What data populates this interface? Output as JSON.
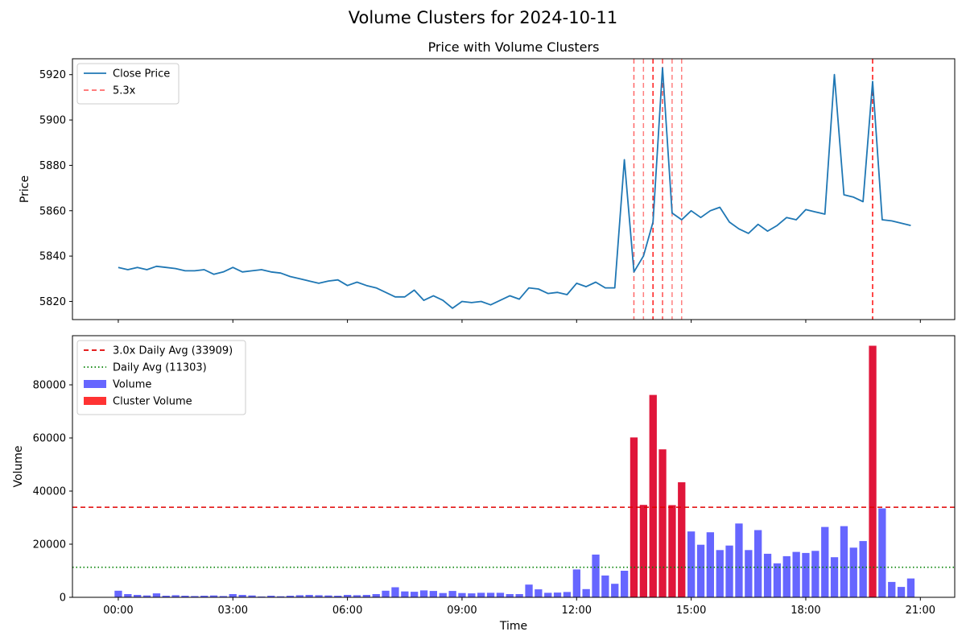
{
  "figure": {
    "title": "Volume Clusters for 2024-10-11"
  },
  "chart_data": [
    {
      "type": "line",
      "title": "Price with Volume Clusters",
      "xlabel": "",
      "ylabel": "Price",
      "x_hours": [
        0.0,
        0.25,
        0.5,
        0.75,
        1.0,
        1.25,
        1.5,
        1.75,
        2.0,
        2.25,
        2.5,
        2.75,
        3.0,
        3.25,
        3.5,
        3.75,
        4.0,
        4.25,
        4.5,
        4.75,
        5.0,
        5.25,
        5.5,
        5.75,
        6.0,
        6.25,
        6.5,
        6.75,
        7.0,
        7.25,
        7.5,
        7.75,
        8.0,
        8.25,
        8.5,
        8.75,
        9.0,
        9.25,
        9.5,
        9.75,
        10.0,
        10.25,
        10.5,
        10.75,
        11.0,
        11.25,
        11.5,
        11.75,
        12.0,
        12.25,
        12.5,
        12.75,
        13.0,
        13.25,
        13.5,
        13.75,
        14.0,
        14.25,
        14.5,
        14.75,
        15.0,
        15.25,
        15.5,
        15.75,
        16.0,
        16.25,
        16.5,
        16.75,
        17.0,
        17.25,
        17.5,
        17.75,
        18.0,
        18.25,
        18.5,
        18.75,
        19.0,
        19.25,
        19.5,
        19.75,
        20.0,
        20.25,
        20.5,
        20.75
      ],
      "series": [
        {
          "name": "Close Price",
          "color": "#1f77b4",
          "values": [
            5835,
            5834,
            5835,
            5834,
            5835.5,
            5835,
            5834.5,
            5833.5,
            5833.5,
            5834,
            5832,
            5833,
            5835,
            5833,
            5833.5,
            5834,
            5833,
            5832.5,
            5831,
            5830,
            5829,
            5828,
            5829,
            5829.5,
            5827,
            5828.5,
            5827,
            5826,
            5824,
            5822,
            5822,
            5825,
            5820.5,
            5822.5,
            5820.5,
            5817,
            5820,
            5819.5,
            5820,
            5818.5,
            5820.5,
            5822.5,
            5821,
            5826,
            5825.5,
            5823.5,
            5824,
            5823,
            5828,
            5826.5,
            5828.5,
            5826,
            5826,
            5882.5,
            5833,
            5840,
            5855,
            5923,
            5859,
            5856,
            5860,
            5857,
            5860,
            5861.5,
            5855,
            5852,
            5850,
            5854,
            5851,
            5853.5,
            5857,
            5856,
            5860.5,
            5859.5,
            5858.5,
            5920,
            5867,
            5866,
            5864,
            5917,
            5856,
            5855.5,
            5854.5,
            5853.5
          ]
        }
      ],
      "ylim": [
        5812,
        5927
      ],
      "xlim": [
        -1.2,
        21.9
      ],
      "yticks": [
        5820,
        5840,
        5860,
        5880,
        5900,
        5920
      ],
      "xticks": [
        {
          "value": 0,
          "label": "00:00"
        },
        {
          "value": 3,
          "label": "03:00"
        },
        {
          "value": 6,
          "label": "06:00"
        },
        {
          "value": 9,
          "label": "09:00"
        },
        {
          "value": 12,
          "label": "12:00"
        },
        {
          "value": 15,
          "label": "15:00"
        },
        {
          "value": 18,
          "label": "18:00"
        },
        {
          "value": 21,
          "label": "21:00"
        }
      ],
      "cluster_lines": [
        {
          "x": 13.5,
          "opacity": 0.6
        },
        {
          "x": 13.75,
          "opacity": 0.5
        },
        {
          "x": 14.0,
          "opacity": 0.9
        },
        {
          "x": 14.25,
          "opacity": 0.7
        },
        {
          "x": 14.5,
          "opacity": 0.5
        },
        {
          "x": 14.75,
          "opacity": 0.5
        },
        {
          "x": 19.75,
          "opacity": 0.95
        }
      ],
      "legend": {
        "placement": "top-left",
        "entries": [
          {
            "label": "Close Price",
            "color": "#1f77b4",
            "style": "solid"
          },
          {
            "label": "5.3x",
            "color": "#ff6b6b",
            "style": "dashed"
          }
        ]
      }
    },
    {
      "type": "bar",
      "title": "",
      "xlabel": "Time",
      "ylabel": "Volume",
      "x_hours": [
        0.0,
        0.25,
        0.5,
        0.75,
        1.0,
        1.25,
        1.5,
        1.75,
        2.0,
        2.25,
        2.5,
        2.75,
        3.0,
        3.25,
        3.5,
        3.75,
        4.0,
        4.25,
        4.5,
        4.75,
        5.0,
        5.25,
        5.5,
        5.75,
        6.0,
        6.25,
        6.5,
        6.75,
        7.0,
        7.25,
        7.5,
        7.75,
        8.0,
        8.25,
        8.5,
        8.75,
        9.0,
        9.25,
        9.5,
        9.75,
        10.0,
        10.25,
        10.5,
        10.75,
        11.0,
        11.25,
        11.5,
        11.75,
        12.0,
        12.25,
        12.5,
        12.75,
        13.0,
        13.25,
        13.5,
        13.75,
        14.0,
        14.25,
        14.5,
        14.75,
        15.0,
        15.25,
        15.5,
        15.75,
        16.0,
        16.25,
        16.5,
        16.75,
        17.0,
        17.25,
        17.5,
        17.75,
        18.0,
        18.25,
        18.5,
        18.75,
        19.0,
        19.25,
        19.5,
        19.75,
        20.0,
        20.25,
        20.5,
        20.75
      ],
      "series": [
        {
          "name": "Volume",
          "color": "#6666ff",
          "values": [
            2500,
            1200,
            900,
            700,
            1500,
            600,
            800,
            600,
            500,
            600,
            700,
            500,
            1200,
            900,
            700,
            300,
            600,
            400,
            600,
            800,
            900,
            800,
            700,
            600,
            900,
            800,
            900,
            1200,
            2500,
            3800,
            2200,
            2100,
            2600,
            2400,
            1600,
            2400,
            1600,
            1500,
            1700,
            1700,
            1700,
            1200,
            1200,
            4800,
            3000,
            1700,
            1800,
            2000,
            10500,
            3100,
            16100,
            8200,
            5100,
            10000,
            60200,
            34800,
            76200,
            55700,
            34700,
            43300,
            24800,
            19800,
            24500,
            17800,
            19500,
            27800,
            17800,
            25300,
            16400,
            12800,
            15500,
            17100,
            16700,
            17500,
            26500,
            15100,
            26800,
            18700,
            21200,
            94700,
            33500,
            5800,
            3900,
            7100
          ]
        }
      ],
      "cluster_indices": [
        54,
        55,
        56,
        57,
        58,
        59,
        79
      ],
      "cluster_label": "Cluster Volume",
      "cluster_color": "#e0163a",
      "reference_lines": [
        {
          "label": "3.0x Daily Avg (33909)",
          "value": 33909,
          "color": "#e00000",
          "style": "dashed"
        },
        {
          "label": "Daily Avg (11303)",
          "value": 11303,
          "color": "#008000",
          "style": "dotted"
        }
      ],
      "ylim": [
        0,
        98500
      ],
      "xlim": [
        -1.2,
        21.9
      ],
      "yticks": [
        0,
        20000,
        40000,
        60000,
        80000
      ],
      "xticks": [
        {
          "value": 0,
          "label": "00:00"
        },
        {
          "value": 3,
          "label": "03:00"
        },
        {
          "value": 6,
          "label": "06:00"
        },
        {
          "value": 9,
          "label": "09:00"
        },
        {
          "value": 12,
          "label": "12:00"
        },
        {
          "value": 15,
          "label": "15:00"
        },
        {
          "value": 18,
          "label": "18:00"
        },
        {
          "value": 21,
          "label": "21:00"
        }
      ],
      "legend": {
        "placement": "top-left",
        "entries": [
          {
            "label": "3.0x Daily Avg (33909)",
            "color": "#e00000",
            "style": "dashed"
          },
          {
            "label": "Daily Avg (11303)",
            "color": "#008000",
            "style": "dotted"
          },
          {
            "label": "Volume",
            "color": "#6666ff",
            "style": "patch"
          },
          {
            "label": "Cluster Volume",
            "color": "#ff3333",
            "style": "patch"
          }
        ]
      }
    }
  ]
}
